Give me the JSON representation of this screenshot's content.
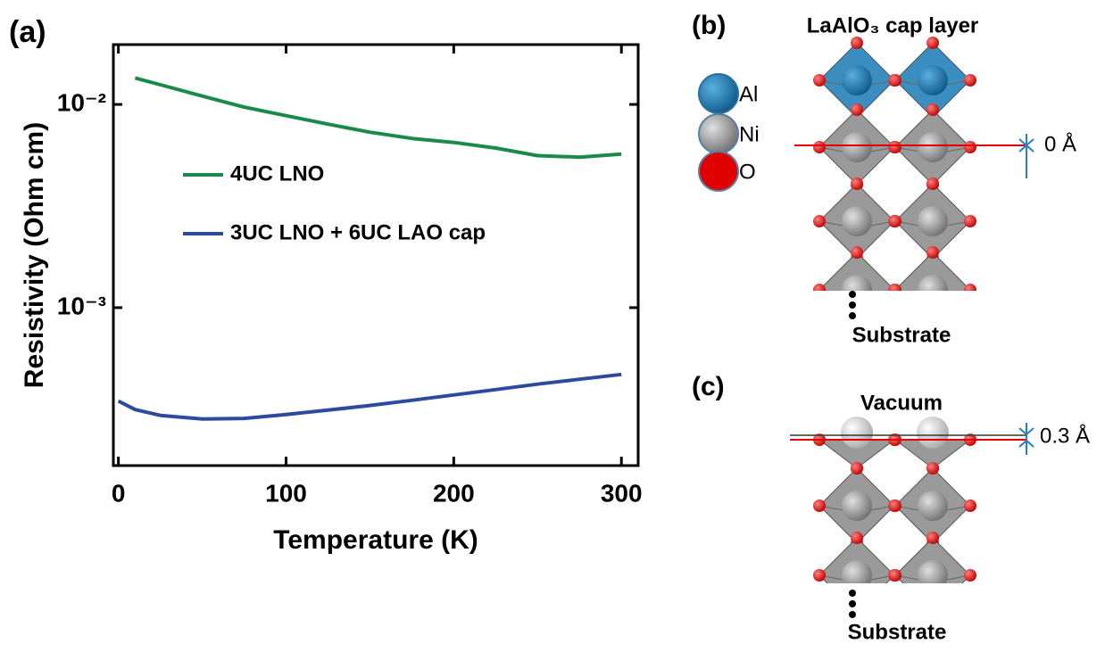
{
  "chart_data": {
    "type": "line",
    "xlabel": "Temperature (K)",
    "ylabel": "Resistivity (Ohm cm)",
    "x": [
      0,
      10,
      25,
      50,
      75,
      100,
      125,
      150,
      175,
      200,
      225,
      250,
      275,
      300
    ],
    "series": [
      {
        "name": "4UC LNO",
        "color": "#1a8a4a",
        "values": [
          null,
          0.0135,
          0.0125,
          0.011,
          0.0097,
          0.0088,
          0.008,
          0.0073,
          0.0068,
          0.0065,
          0.0061,
          0.0056,
          0.0055,
          0.0057
        ]
      },
      {
        "name": "3UC LNO + 6UC LAO cap",
        "color": "#2e4a9e",
        "values": [
          0.000347,
          0.000315,
          0.000295,
          0.000283,
          0.000285,
          0.000298,
          0.000313,
          0.00033,
          0.00035,
          0.000372,
          0.000395,
          0.00042,
          0.000444,
          0.000469
        ]
      }
    ],
    "xlim": [
      -3,
      310
    ],
    "xticks": [
      0,
      100,
      200,
      300
    ],
    "ylim": [
      0.000167,
      0.0197
    ],
    "yscale": "log",
    "yticks": [
      {
        "value": 0.001,
        "label": "10⁻³"
      },
      {
        "value": 0.01,
        "label": "10⁻²"
      }
    ]
  },
  "figure": {
    "panel_a": "(a)",
    "panel_b": "(b)",
    "panel_c": "(c)",
    "cap_layer": "LaAlO₃ cap layer",
    "atoms": [
      "Al",
      "Ni",
      "O"
    ],
    "offset_b": "0 Å",
    "substrate_b": "Substrate",
    "vacuum": "Vacuum",
    "offset_c": "0.3 Å",
    "substrate_c": "Substrate"
  }
}
